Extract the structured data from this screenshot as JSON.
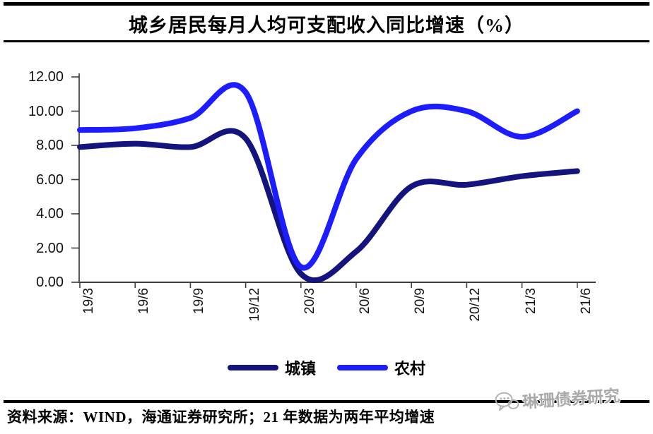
{
  "title": "城乡居民每月人均可支配收入同比增速（%）",
  "footer": {
    "source_text": "资料来源：WIND，海通证券研究所；21 年数据为两年平均增速"
  },
  "watermark": {
    "label": "琳珊债券研究",
    "icon": "wechat-chat-bubbles-icon"
  },
  "chart_data": {
    "type": "line",
    "title": "城乡居民每月人均可支配收入同比增速（%）",
    "line_style": "smooth",
    "grid": false,
    "legend_position": "bottom",
    "x_label_rotation": 90,
    "ylim": [
      0,
      12
    ],
    "y_tick_step": 2,
    "y_tick_labels": [
      "12.00",
      "10.00",
      "8.00",
      "6.00",
      "4.00",
      "2.00",
      "0.00"
    ],
    "categories": [
      "19/3",
      "19/6",
      "19/9",
      "19/12",
      "20/3",
      "20/6",
      "20/9",
      "20/12",
      "21/3",
      "21/6"
    ],
    "series": [
      {
        "name": "城镇",
        "color": "#14147E",
        "values": [
          7.9,
          8.1,
          7.9,
          8.4,
          0.5,
          1.8,
          5.6,
          5.7,
          6.2,
          6.5
        ]
      },
      {
        "name": "农村",
        "color": "#1C1CFF",
        "values": [
          8.9,
          9.0,
          9.6,
          11.1,
          0.9,
          7.2,
          10.0,
          10.0,
          8.5,
          10.0
        ]
      }
    ],
    "axis_color": "#3d3d3d"
  }
}
